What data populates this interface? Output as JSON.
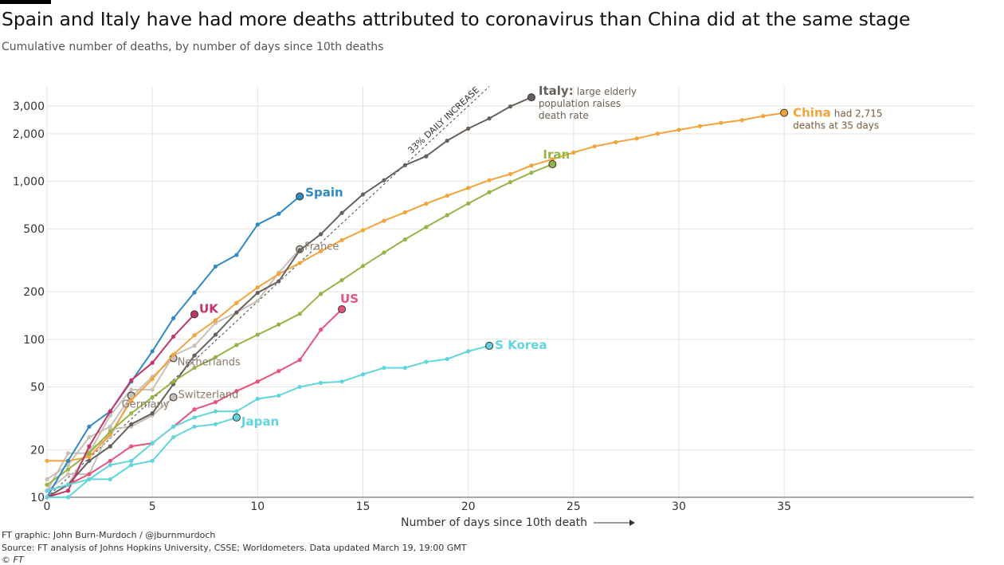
{
  "title": "Spain and Italy have had more deaths attributed to coronavirus than China did at the same stage",
  "subtitle": "Cumulative number of deaths, by number of days since 10th deaths",
  "footer": {
    "credit": "FT graphic: John Burn-Murdoch / @jburnmurdoch",
    "source": "Source: FT analysis of Johns Hopkins University, CSSE; Worldometers. Data updated March 19, 19:00 GMT",
    "copyright": "© FT"
  },
  "chart_data": {
    "type": "line",
    "xlabel": "Number of days since 10th death",
    "ylabel": "",
    "yscale": "log",
    "xlim": [
      0,
      44
    ],
    "ylim": [
      10,
      4000
    ],
    "xticks": [
      0,
      5,
      10,
      15,
      20,
      25,
      30,
      35
    ],
    "yticks": [
      10,
      20,
      50,
      100,
      200,
      500,
      1000,
      2000,
      3000
    ],
    "ytick_labels": [
      "10",
      "20",
      "50",
      "100",
      "200",
      "500",
      "1,000",
      "2,000",
      "3,000"
    ],
    "grid": true,
    "reference_line": {
      "label": "33% DAILY INCREASE",
      "start": 10,
      "daily_growth": 1.33,
      "x_end": 21
    },
    "series": [
      {
        "name": "China",
        "label_bold": "China",
        "label_rest": "had 2,715|deaths at 35 days",
        "color": "#f2a33a",
        "emphasis": true,
        "x": [
          0,
          1,
          2,
          3,
          4,
          5,
          6,
          7,
          8,
          9,
          10,
          11,
          12,
          13,
          14,
          15,
          16,
          17,
          18,
          19,
          20,
          21,
          22,
          23,
          24,
          25,
          26,
          27,
          28,
          29,
          30,
          31,
          32,
          33,
          34,
          35
        ],
        "y": [
          17,
          17,
          18,
          25,
          41,
          56,
          80,
          106,
          132,
          170,
          213,
          259,
          304,
          361,
          425,
          490,
          563,
          637,
          722,
          811,
          908,
          1016,
          1113,
          1259,
          1380,
          1523,
          1665,
          1770,
          1868,
          2004,
          2118,
          2236,
          2345,
          2442,
          2592,
          2715
        ]
      },
      {
        "name": "Italy",
        "label_bold": "Italy:",
        "label_rest": "large elderly|population raises|death rate",
        "color": "#66605c",
        "emphasis": true,
        "x": [
          0,
          1,
          2,
          3,
          4,
          5,
          6,
          7,
          8,
          9,
          10,
          11,
          12,
          13,
          14,
          15,
          16,
          17,
          18,
          19,
          20,
          21,
          22,
          23
        ],
        "y": [
          10,
          12,
          17,
          21,
          29,
          34,
          52,
          79,
          107,
          148,
          197,
          233,
          366,
          463,
          631,
          827,
          1016,
          1266,
          1441,
          1809,
          2158,
          2503,
          2978,
          3405
        ]
      },
      {
        "name": "Iran",
        "label_bold": "Iran",
        "label_rest": "",
        "color": "#96b547",
        "emphasis": true,
        "x": [
          0,
          1,
          2,
          3,
          4,
          5,
          6,
          7,
          8,
          9,
          10,
          11,
          12,
          13,
          14,
          15,
          16,
          17,
          18,
          19,
          20,
          21,
          22,
          23,
          24
        ],
        "y": [
          12,
          15,
          19,
          26,
          34,
          43,
          54,
          66,
          77,
          92,
          107,
          124,
          145,
          194,
          237,
          291,
          354,
          429,
          514,
          611,
          724,
          853,
          988,
          1135,
          1284
        ]
      },
      {
        "name": "Spain",
        "label_bold": "Spain",
        "label_rest": "",
        "color": "#2f8ac4",
        "emphasis": true,
        "x": [
          0,
          1,
          2,
          3,
          4,
          5,
          6,
          7,
          8,
          9,
          10,
          11,
          12
        ],
        "y": [
          10,
          17,
          28,
          35,
          54,
          84,
          136,
          198,
          289,
          342,
          533,
          623,
          803
        ]
      },
      {
        "name": "UK",
        "label_bold": "UK",
        "label_rest": "",
        "color": "#c0356a",
        "emphasis": true,
        "x": [
          0,
          1,
          2,
          3,
          4,
          5,
          6,
          7
        ],
        "y": [
          10,
          11,
          21,
          35,
          55,
          71,
          104,
          144
        ]
      },
      {
        "name": "US",
        "label_bold": "US",
        "label_rest": "",
        "color": "#e8527c",
        "emphasis": true,
        "x": [
          0,
          1,
          2,
          3,
          4,
          5,
          6,
          7,
          8,
          9,
          10,
          11,
          12,
          13,
          14
        ],
        "y": [
          11,
          12,
          14,
          17,
          21,
          22,
          28,
          36,
          40,
          47,
          54,
          63,
          74,
          115,
          155
        ]
      },
      {
        "name": "S Korea",
        "label_bold": "S Korea",
        "label_rest": "",
        "color": "#5fd6dd",
        "emphasis": true,
        "x": [
          0,
          1,
          2,
          3,
          4,
          5,
          6,
          7,
          8,
          9,
          10,
          11,
          12,
          13,
          14,
          15,
          16,
          17,
          18,
          19,
          20,
          21
        ],
        "y": [
          11,
          12,
          13,
          16,
          17,
          22,
          28,
          32,
          35,
          35,
          42,
          44,
          50,
          53,
          54,
          60,
          66,
          66,
          72,
          75,
          84,
          91
        ]
      },
      {
        "name": "Japan",
        "label_bold": "Japan",
        "label_rest": "",
        "color": "#5fd6dd",
        "emphasis": true,
        "x": [
          0,
          1,
          2,
          3,
          4,
          5,
          6,
          7,
          8,
          9
        ],
        "y": [
          10,
          10,
          13,
          13,
          16,
          17,
          24,
          28,
          29,
          32
        ]
      },
      {
        "name": "France",
        "label_bold": "",
        "label_rest": "France",
        "color": "#c8bfb6",
        "emphasis": false,
        "x": [
          0,
          1,
          2,
          3,
          4,
          5,
          6,
          7,
          8,
          9,
          10,
          11,
          12
        ],
        "y": [
          11,
          19,
          19,
          33,
          48,
          48,
          79,
          91,
          127,
          148,
          175,
          264,
          372
        ]
      },
      {
        "name": "Netherlands",
        "label_bold": "",
        "label_rest": "Netherlands",
        "color": "#c8bfb6",
        "emphasis": false,
        "x": [
          0,
          1,
          2,
          3,
          4,
          5,
          6
        ],
        "y": [
          10,
          12,
          20,
          24,
          43,
          58,
          76
        ]
      },
      {
        "name": "Germany",
        "label_bold": "",
        "label_rest": "Germany",
        "color": "#c8bfb6",
        "emphasis": false,
        "x": [
          0,
          1,
          2,
          3,
          4
        ],
        "y": [
          13,
          16,
          24,
          28,
          44
        ]
      },
      {
        "name": "Switzerland",
        "label_bold": "",
        "label_rest": "Switzerland",
        "color": "#c8bfb6",
        "emphasis": false,
        "x": [
          0,
          1,
          2,
          3,
          4,
          5,
          6
        ],
        "y": [
          11,
          14,
          14,
          27,
          28,
          33,
          43
        ]
      }
    ]
  }
}
